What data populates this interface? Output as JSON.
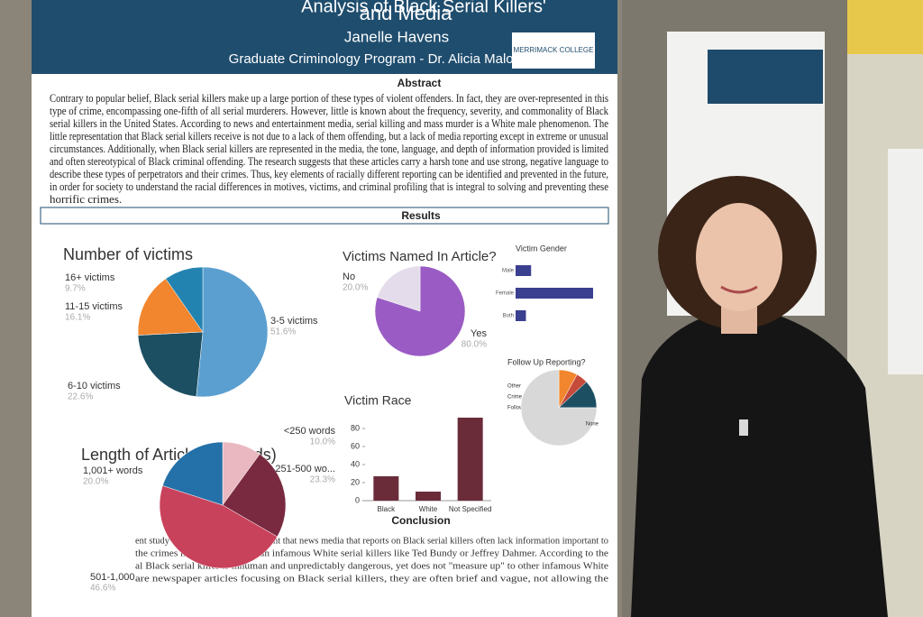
{
  "poster": {
    "title_lines": [
      "Analysis of Black Serial Killers'",
      "and Media"
    ],
    "author": "Janelle Havens",
    "program": "Graduate Criminology Program - Dr. Alicia Malone",
    "logo": "MERRIMACK COLLEGE",
    "abstract": {
      "heading": "Abstract",
      "lines": [
        "Contrary to popular belief, Black serial killers make up a large portion of these types of violent offenders. In fact, they are over-represented in this",
        "type of crime, encompassing one-fifth of all serial murderers. However, little is known about the frequency, severity, and commonality of Black",
        "serial killers in the United States. According to news and entertainment media, serial killing and mass murder is a White male phenomenon. The",
        "little representation that Black serial killers receive is not due to a lack of them offending, but a lack of media reporting except in extreme or unusual",
        "circumstances. Additionally, when Black serial killers are represented in the media, the tone, language, and depth of information provided is limited",
        "and often stereotypical of Black criminal offending. The research suggests that these articles carry a harsh tone and use strong, negative language to",
        "describe these types of perpetrators and their crimes. Thus, key elements of racially different reporting can be identified and prevented in the future,",
        "in order for society to understand the racial differences in motives, victims, and criminal profiling that is integral to solving and preventing these",
        "horrific crimes."
      ]
    },
    "results_heading": "Results",
    "charts": [
      {
        "type": "pie",
        "title": "Number of victims",
        "categories": [
          "3-5 victims",
          "6-10 victims",
          "11-15 victims",
          "16+ victims"
        ],
        "values": [
          51.6,
          22.6,
          16.1,
          9.7
        ],
        "value_labels": [
          "51.6%",
          "22.6%",
          "16.1%",
          "9.7%"
        ],
        "colors": [
          "#5b9fd0",
          "#1d4f63",
          "#f2862e",
          "#2383b0"
        ]
      },
      {
        "type": "pie",
        "title": "Victims Named In Article?",
        "categories": [
          "Yes",
          "No"
        ],
        "values": [
          80.0,
          20.0
        ],
        "value_labels": [
          "80.0%",
          "20.0%"
        ],
        "colors": [
          "#9a5cc4",
          "#e4dcea"
        ]
      },
      {
        "type": "hbar",
        "title": "Victim Gender",
        "categories": [
          "Male",
          "Female",
          "Both"
        ],
        "values": [
          12,
          60,
          8
        ],
        "color": "#3a3f8f"
      },
      {
        "type": "pie",
        "title": "Length of Article (in Words)",
        "categories": [
          "<250 words",
          "251-500 wo...",
          "501-1,000...",
          "1,001+ words"
        ],
        "values": [
          10.0,
          23.3,
          46.6,
          20.0
        ],
        "value_labels": [
          "10.0%",
          "23.3%",
          "46.6%",
          "20.0%"
        ],
        "colors": [
          "#eab8c0",
          "#7a2a40",
          "#c9425c",
          "#2470a8"
        ]
      },
      {
        "type": "bar",
        "title": "Victim Race",
        "categories": [
          "Black",
          "White",
          "Not Specified"
        ],
        "values": [
          27,
          10,
          92
        ],
        "color": "#6b2c3a",
        "ylim": [
          0,
          100
        ],
        "yticks": [
          0,
          20,
          40,
          60,
          80
        ]
      },
      {
        "type": "pie",
        "title": "Follow Up Reporting?",
        "categories": [
          "Other",
          "Crime Tipline",
          "Follow-up",
          "None"
        ],
        "values": [
          8,
          5,
          12,
          75
        ],
        "colors": [
          "#f2862e",
          "#c64a3a",
          "#1d4f63",
          "#d8d8d8"
        ]
      }
    ],
    "conclusion": {
      "heading": "Conclusion",
      "lines": [
        "ent study have supported the argument that news media that reports on Black serial killers often lack information important to",
        "the crimes much differently than infamous White serial killers like Ted Bundy or Jeffrey Dahmer. According to the",
        "al Black serial killer is inhuman and unpredictably dangerous, yet does not \"measure up\" to other infamous White",
        "are newspaper articles focusing on Black serial killers, they are often brief and vague, not allowing the"
      ]
    }
  }
}
